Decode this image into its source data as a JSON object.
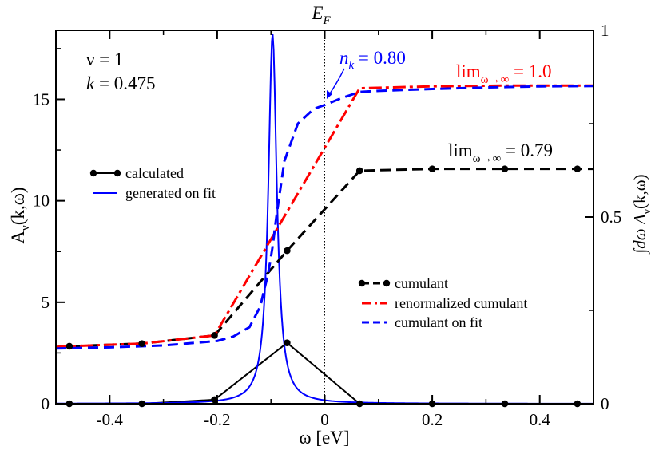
{
  "chart_data": {
    "type": "line",
    "title": "E_F",
    "title_main": "E",
    "title_sub": "F",
    "xlabel": "ω [eV]",
    "xlim": [
      -0.5,
      0.5
    ],
    "xticks": [
      -0.4,
      -0.2,
      0,
      0.2,
      0.4
    ],
    "xtick_labels": [
      "-0.4",
      "-0.2",
      "0",
      "0.2",
      "0.4"
    ],
    "left_axis": {
      "label_main": "A",
      "label_sub": "ν",
      "label_rest": "(k,ω)",
      "ylim": [
        0,
        18.4
      ],
      "ticks": [
        0,
        5,
        10,
        15
      ],
      "tick_labels": [
        "0",
        "5",
        "10",
        "15"
      ]
    },
    "right_axis": {
      "label_int": "∫dω A",
      "label_sub": "ν",
      "label_rest": "(k,ω)",
      "ylim": [
        0,
        1
      ],
      "ticks": [
        0,
        0.5,
        1
      ],
      "tick_labels": [
        "0",
        "0.5",
        "1"
      ]
    },
    "fermi_level_x": 0,
    "annotations": {
      "nu_text": "ν = 1",
      "k_label": "k",
      "k_value": " = 0.475",
      "nk_label": "n",
      "nk_sub": "k",
      "nk_value": " = 0.80",
      "lim_red_label": "lim",
      "lim_red_sub": "ω→∞",
      "lim_red_value": " = 1.0",
      "lim_black_label": "lim",
      "lim_black_sub": "ω→∞",
      "lim_black_value": " = 0.79"
    },
    "series": [
      {
        "name": "calculated",
        "axis": "left",
        "color": "#000000",
        "style": "solid-markers",
        "x": [
          -0.475,
          -0.34,
          -0.205,
          -0.07,
          0.065,
          0.2,
          0.335,
          0.47
        ],
        "y": [
          0,
          0,
          0.2,
          3.0,
          0,
          0,
          0,
          0
        ]
      },
      {
        "name": "generated on fit",
        "axis": "left",
        "color": "#0000ff",
        "style": "solid",
        "lorentzian": {
          "center": -0.097,
          "height": 18.2,
          "gamma": 0.0095,
          "x_range": [
            -0.5,
            0.5
          ]
        }
      },
      {
        "name": "cumulant",
        "axis": "right",
        "color": "#000000",
        "style": "dashed-markers",
        "x": [
          -0.5,
          -0.475,
          -0.34,
          -0.205,
          -0.07,
          0.065,
          0.2,
          0.335,
          0.47,
          0.5
        ],
        "y": [
          0.152,
          0.154,
          0.161,
          0.183,
          0.41,
          0.624,
          0.629,
          0.629,
          0.629,
          0.629
        ]
      },
      {
        "name": "renormalized cumulant",
        "axis": "right",
        "color": "#ff0000",
        "style": "dash-dot",
        "x": [
          -0.5,
          -0.475,
          -0.34,
          -0.205,
          0.065,
          0.2,
          0.335,
          0.47,
          0.5
        ],
        "y": [
          0.152,
          0.154,
          0.161,
          0.183,
          0.845,
          0.85,
          0.852,
          0.852,
          0.852
        ]
      },
      {
        "name": "cumulant on fit",
        "axis": "right",
        "color": "#0000ff",
        "style": "dashed",
        "x": [
          -0.5,
          -0.4,
          -0.3,
          -0.2,
          -0.17,
          -0.14,
          -0.12,
          -0.105,
          -0.097,
          -0.09,
          -0.075,
          -0.05,
          -0.02,
          0.0,
          0.03,
          0.065,
          0.1,
          0.2,
          0.3,
          0.4,
          0.5
        ],
        "y": [
          0.148,
          0.151,
          0.156,
          0.168,
          0.18,
          0.205,
          0.26,
          0.35,
          0.42,
          0.5,
          0.65,
          0.75,
          0.79,
          0.8,
          0.818,
          0.835,
          0.838,
          0.843,
          0.847,
          0.85,
          0.851
        ]
      }
    ],
    "legend_top": {
      "position": "left-middle",
      "entries": [
        "calculated",
        "generated on fit"
      ]
    },
    "legend_bottom": {
      "position": "bottom-right",
      "entries": [
        "cumulant",
        "renormalized cumulant",
        "cumulant on fit"
      ]
    }
  }
}
